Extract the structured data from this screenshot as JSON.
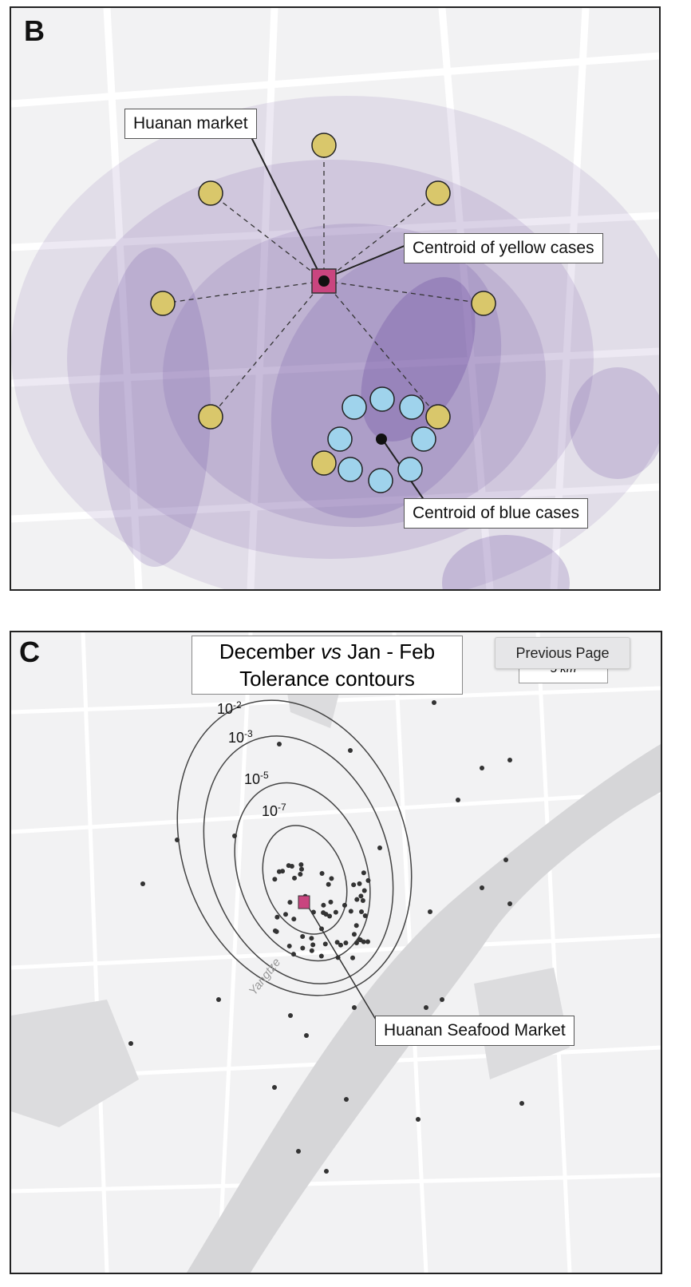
{
  "panel_b": {
    "letter": "B",
    "labels": {
      "market": "Huanan market",
      "yellow_centroid": "Centroid of yellow cases",
      "blue_centroid": "Centroid of blue cases"
    },
    "colors": {
      "yellow": "#d9c76b",
      "blue": "#9fd3ec",
      "market": "#c9457f",
      "density": "#6a4a9e"
    }
  },
  "panel_c": {
    "letter": "C",
    "title_line1_a": "December ",
    "title_line1_vs": "vs",
    "title_line1_b": " Jan - Feb",
    "title_line2": "Tolerance contours",
    "scale": "5 km",
    "contours": [
      {
        "base": "10",
        "exp": "-2"
      },
      {
        "base": "10",
        "exp": "-3"
      },
      {
        "base": "10",
        "exp": "-5"
      },
      {
        "base": "10",
        "exp": "-7"
      }
    ],
    "market_label": "Huanan Seafood Market",
    "river": "Yangtze"
  },
  "overlay": {
    "previous_page": "Previous Page"
  }
}
